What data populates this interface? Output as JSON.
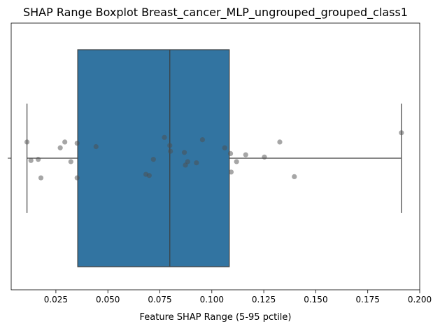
{
  "chart_data": {
    "type": "boxplot",
    "title": "SHAP Range Boxplot Breast_cancer_MLP_ungrouped_grouped_class1",
    "xlabel": "Feature SHAP Range (5-95 pctile)",
    "ylabel": "",
    "xlim": [
      0.0035,
      0.2
    ],
    "xticks": [
      0.025,
      0.05,
      0.075,
      0.1,
      0.125,
      0.15,
      0.175,
      0.2
    ],
    "xtick_labels": [
      "0.025",
      "0.050",
      "0.075",
      "0.100",
      "0.125",
      "0.150",
      "0.175",
      "0.200"
    ],
    "grid": false,
    "box": {
      "whisker_low": 0.0111,
      "q1": 0.0355,
      "median": 0.0798,
      "q3": 0.1084,
      "whisker_high": 0.1912,
      "color": "#3274a1",
      "edge_color": "#3d3d3d"
    },
    "points": {
      "color": "#4d4d4d",
      "values": [
        0.0111,
        0.013,
        0.0165,
        0.0178,
        0.0271,
        0.0293,
        0.0322,
        0.0352,
        0.0352,
        0.0443,
        0.0683,
        0.0699,
        0.0719,
        0.0772,
        0.0798,
        0.0801,
        0.0868,
        0.0873,
        0.0884,
        0.0926,
        0.0955,
        0.1062,
        0.109,
        0.1093,
        0.1119,
        0.1163,
        0.1253,
        0.1327,
        0.1397,
        0.1912
      ],
      "jitter": [
        0.14,
        -0.02,
        -0.01,
        -0.17,
        0.09,
        0.14,
        -0.03,
        0.13,
        -0.17,
        0.1,
        -0.14,
        -0.15,
        -0.01,
        0.18,
        0.11,
        0.06,
        0.05,
        -0.06,
        -0.03,
        -0.04,
        0.16,
        0.09,
        0.04,
        -0.12,
        -0.03,
        0.03,
        0.01,
        0.14,
        -0.16,
        0.22
      ]
    }
  }
}
